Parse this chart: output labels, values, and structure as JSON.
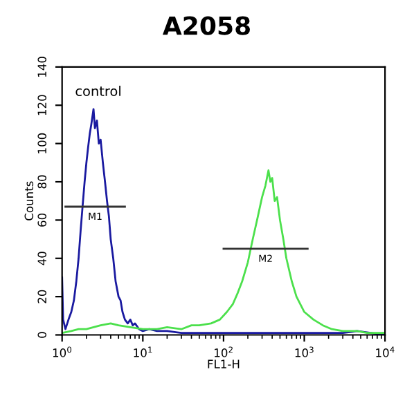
{
  "chart_data": {
    "type": "line",
    "title": "A2058",
    "xlabel": "FL1-H",
    "ylabel": "Counts",
    "log": "x",
    "xlim": [
      1,
      10000
    ],
    "xticks": [
      {
        "value": 1,
        "label": "10$^{0}$"
      },
      {
        "value": 10,
        "label": "10$^{1}$"
      },
      {
        "value": 100,
        "label": "10$^{2}$"
      },
      {
        "value": 1000,
        "label": "10$^{3}$"
      },
      {
        "value": 10000,
        "label": "10$^{4}$"
      }
    ],
    "ylim": [
      0,
      140
    ],
    "yticks": [
      0,
      20,
      40,
      60,
      80,
      100,
      120,
      140
    ],
    "grid": false,
    "legend": false,
    "series": [
      {
        "color": "#1a1aa0",
        "x": [
          1.0,
          1.03,
          1.1,
          1.2,
          1.3,
          1.4,
          1.5,
          1.6,
          1.7,
          1.8,
          1.9,
          2.0,
          2.1,
          2.2,
          2.3,
          2.45,
          2.55,
          2.7,
          2.85,
          3.0,
          3.2,
          3.4,
          3.6,
          3.8,
          4.0,
          4.3,
          4.6,
          5.0,
          5.3,
          5.6,
          6.0,
          6.5,
          7.0,
          7.5,
          8.0,
          9,
          10,
          12,
          15,
          20,
          30,
          50,
          100,
          200,
          500,
          1000,
          3000,
          4500,
          10000
        ],
        "values": [
          30,
          8,
          3,
          8,
          12,
          18,
          28,
          40,
          55,
          68,
          80,
          90,
          98,
          105,
          110,
          118,
          108,
          112,
          100,
          102,
          90,
          80,
          70,
          62,
          50,
          40,
          28,
          20,
          18,
          12,
          8,
          6,
          8,
          5,
          6,
          3,
          2,
          3,
          2,
          2,
          1,
          1,
          1,
          1,
          1,
          1,
          1,
          2,
          0
        ]
      },
      {
        "color": "#4ce04c",
        "x": [
          1.0,
          1.3,
          1.6,
          2,
          3,
          4,
          5,
          7,
          10,
          15,
          20,
          30,
          40,
          50,
          70,
          90,
          110,
          130,
          150,
          170,
          200,
          230,
          260,
          300,
          330,
          360,
          380,
          400,
          430,
          460,
          500,
          550,
          600,
          700,
          800,
          1000,
          1300,
          1700,
          2200,
          3000,
          4500,
          6000,
          10000
        ],
        "values": [
          1,
          2,
          3,
          3,
          5,
          6,
          5,
          4,
          3,
          3,
          4,
          3,
          5,
          5,
          6,
          8,
          12,
          16,
          22,
          28,
          38,
          50,
          60,
          72,
          78,
          86,
          80,
          82,
          70,
          72,
          60,
          50,
          40,
          28,
          20,
          12,
          8,
          5,
          3,
          2,
          2,
          1,
          1
        ]
      },
      {
        "color": "#333333",
        "x": [
          1.1,
          6
        ],
        "values": [
          67,
          67
        ]
      },
      {
        "color": "#333333",
        "x": [
          100,
          1100
        ],
        "values": [
          45,
          45
        ]
      }
    ],
    "annotations": [
      "control",
      "M1",
      "M2"
    ]
  }
}
